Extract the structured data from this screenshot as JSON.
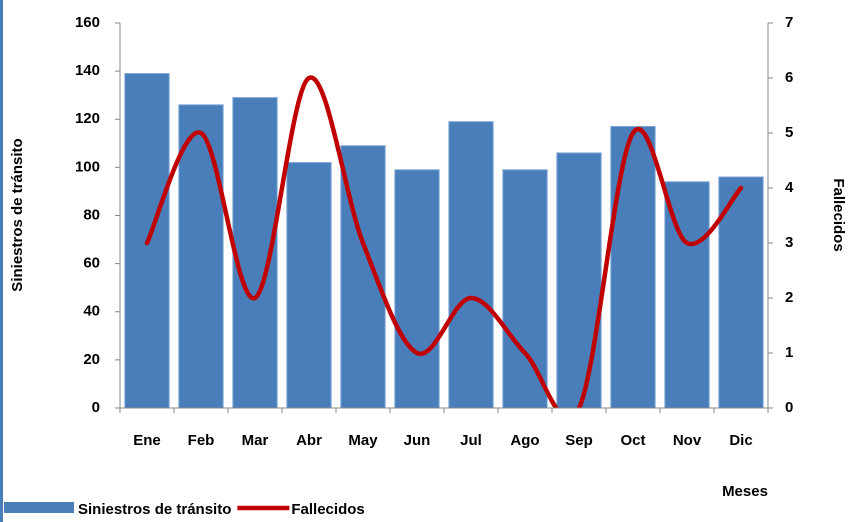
{
  "chart_data": {
    "type": "bar",
    "x_label": "Meses",
    "y_label": "Siniestros de tránsito",
    "y2_label": "Fallecidos",
    "categories": [
      "Ene",
      "Feb",
      "Mar",
      "Abr",
      "May",
      "Jun",
      "Jul",
      "Ago",
      "Sep",
      "Oct",
      "Nov",
      "Dic"
    ],
    "series": [
      {
        "name": "Siniestros de tránsito",
        "type": "bar",
        "color": "#4a7ebb",
        "values": [
          139,
          126,
          129,
          102,
          109,
          99,
          119,
          99,
          106,
          117,
          94,
          96
        ]
      },
      {
        "name": "Fallecidos",
        "type": "line",
        "axis": "y2",
        "color": "#c00000",
        "values": [
          3,
          5,
          2,
          6,
          3,
          1,
          2,
          1,
          0,
          5,
          3,
          4
        ]
      }
    ],
    "ylim": [
      0,
      160
    ],
    "yticks": [
      0,
      20,
      40,
      60,
      80,
      100,
      120,
      140,
      160
    ],
    "y2lim": [
      0,
      7
    ],
    "y2ticks": [
      0,
      1,
      2,
      3,
      4,
      5,
      6,
      7
    ],
    "grid": false,
    "legend": "bottom"
  }
}
